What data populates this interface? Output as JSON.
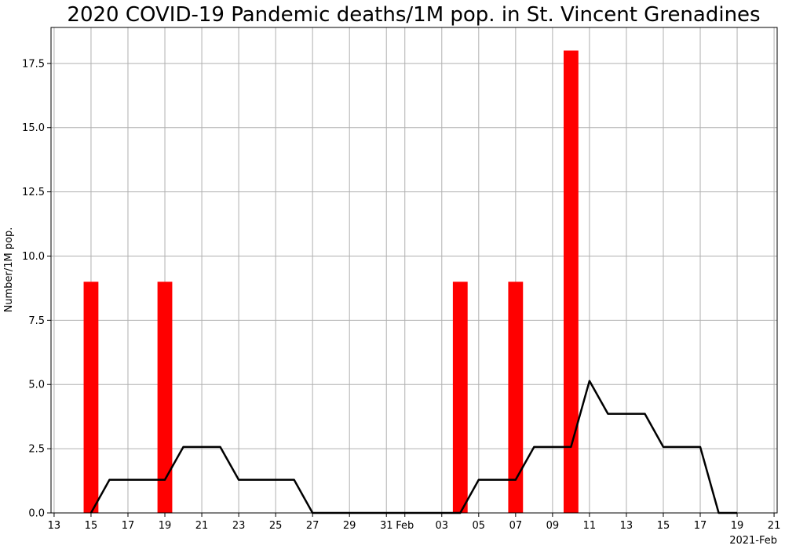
{
  "chart_data": {
    "type": "bar",
    "title": "2020 COVID-19 Pandemic deaths/1M pop. in St. Vincent Grenadines",
    "ylabel": "Number/1M pop.",
    "xlabel": "",
    "x_offset_label": "2021-Feb",
    "xlim": [
      "2021-01-12 20:00",
      "2021-02-21 04:00"
    ],
    "ylim": [
      0,
      18.9
    ],
    "grid": true,
    "colors": {
      "bars": "#ff0000",
      "line": "#000000",
      "grid": "#b0b0b0"
    },
    "x_ticks": [
      {
        "date": "2021-01-13",
        "label": "13"
      },
      {
        "date": "2021-01-15",
        "label": "15"
      },
      {
        "date": "2021-01-17",
        "label": "17"
      },
      {
        "date": "2021-01-19",
        "label": "19"
      },
      {
        "date": "2021-01-21",
        "label": "21"
      },
      {
        "date": "2021-01-23",
        "label": "23"
      },
      {
        "date": "2021-01-25",
        "label": "25"
      },
      {
        "date": "2021-01-27",
        "label": "27"
      },
      {
        "date": "2021-01-29",
        "label": "29"
      },
      {
        "date": "2021-01-31",
        "label": "31"
      },
      {
        "date": "2021-02-01",
        "label": "Feb"
      },
      {
        "date": "2021-02-03",
        "label": "03"
      },
      {
        "date": "2021-02-05",
        "label": "05"
      },
      {
        "date": "2021-02-07",
        "label": "07"
      },
      {
        "date": "2021-02-09",
        "label": "09"
      },
      {
        "date": "2021-02-11",
        "label": "11"
      },
      {
        "date": "2021-02-13",
        "label": "13"
      },
      {
        "date": "2021-02-15",
        "label": "15"
      },
      {
        "date": "2021-02-17",
        "label": "17"
      },
      {
        "date": "2021-02-19",
        "label": "19"
      },
      {
        "date": "2021-02-21",
        "label": "21"
      }
    ],
    "y_ticks": [
      {
        "value": 0,
        "label": "0.0"
      },
      {
        "value": 2.5,
        "label": "2.5"
      },
      {
        "value": 5,
        "label": "5.0"
      },
      {
        "value": 7.5,
        "label": "7.5"
      },
      {
        "value": 10,
        "label": "10.0"
      },
      {
        "value": 12.5,
        "label": "12.5"
      },
      {
        "value": 15,
        "label": "15.0"
      },
      {
        "value": 17.5,
        "label": "17.5"
      }
    ],
    "bars": [
      {
        "date": "2021-01-15",
        "value": 9.0
      },
      {
        "date": "2021-01-19",
        "value": 9.0
      },
      {
        "date": "2021-02-04",
        "value": 9.0
      },
      {
        "date": "2021-02-07",
        "value": 9.0
      },
      {
        "date": "2021-02-10",
        "value": 18.0
      }
    ],
    "line": [
      {
        "date": "2021-01-15",
        "value": 0.0
      },
      {
        "date": "2021-01-16",
        "value": 1.29
      },
      {
        "date": "2021-01-17",
        "value": 1.29
      },
      {
        "date": "2021-01-18",
        "value": 1.29
      },
      {
        "date": "2021-01-19",
        "value": 1.29
      },
      {
        "date": "2021-01-20",
        "value": 2.57
      },
      {
        "date": "2021-01-21",
        "value": 2.57
      },
      {
        "date": "2021-01-22",
        "value": 2.57
      },
      {
        "date": "2021-01-23",
        "value": 1.29
      },
      {
        "date": "2021-01-24",
        "value": 1.29
      },
      {
        "date": "2021-01-25",
        "value": 1.29
      },
      {
        "date": "2021-01-26",
        "value": 1.29
      },
      {
        "date": "2021-01-27",
        "value": 0.0
      },
      {
        "date": "2021-01-28",
        "value": 0.0
      },
      {
        "date": "2021-01-29",
        "value": 0.0
      },
      {
        "date": "2021-01-30",
        "value": 0.0
      },
      {
        "date": "2021-01-31",
        "value": 0.0
      },
      {
        "date": "2021-02-01",
        "value": 0.0
      },
      {
        "date": "2021-02-02",
        "value": 0.0
      },
      {
        "date": "2021-02-03",
        "value": 0.0
      },
      {
        "date": "2021-02-04",
        "value": 0.0
      },
      {
        "date": "2021-02-05",
        "value": 1.29
      },
      {
        "date": "2021-02-06",
        "value": 1.29
      },
      {
        "date": "2021-02-07",
        "value": 1.29
      },
      {
        "date": "2021-02-08",
        "value": 2.57
      },
      {
        "date": "2021-02-09",
        "value": 2.57
      },
      {
        "date": "2021-02-10",
        "value": 2.57
      },
      {
        "date": "2021-02-11",
        "value": 5.14
      },
      {
        "date": "2021-02-12",
        "value": 3.86
      },
      {
        "date": "2021-02-13",
        "value": 3.86
      },
      {
        "date": "2021-02-14",
        "value": 3.86
      },
      {
        "date": "2021-02-15",
        "value": 2.57
      },
      {
        "date": "2021-02-16",
        "value": 2.57
      },
      {
        "date": "2021-02-17",
        "value": 2.57
      },
      {
        "date": "2021-02-18",
        "value": 0.0
      },
      {
        "date": "2021-02-19",
        "value": 0.0
      }
    ]
  }
}
